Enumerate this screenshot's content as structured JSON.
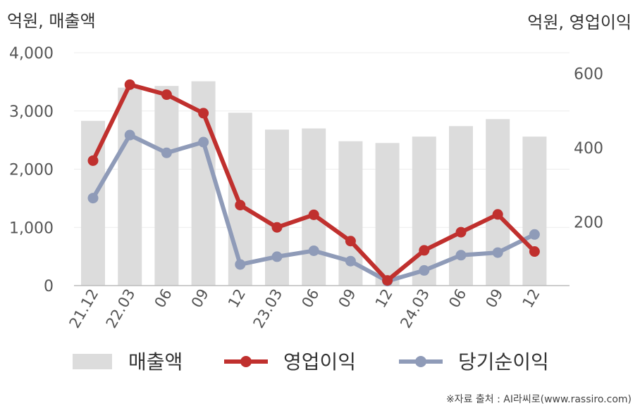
{
  "chart_data": {
    "type": "bar+line",
    "categories": [
      "21.12",
      "22.03",
      "06",
      "09",
      "12",
      "23.03",
      "06",
      "09",
      "12",
      "24.03",
      "06",
      "09",
      "12"
    ],
    "left_axis": {
      "title": "억원, 매출액",
      "ylim": [
        0,
        4000
      ],
      "ticks": [
        "0",
        "1,000",
        "2,000",
        "3,000",
        "4,000"
      ],
      "tick_values": [
        0,
        1000,
        2000,
        3000,
        4000
      ]
    },
    "right_axis": {
      "title": "억원, 영업이익",
      "ylim": [
        28,
        656
      ],
      "ticks": [
        "200",
        "400",
        "600"
      ],
      "tick_values": [
        200,
        400,
        600
      ]
    },
    "series": [
      {
        "name": "매출액",
        "type": "bar",
        "axis": "left",
        "color": "#dcdcdc",
        "values": [
          2830,
          3400,
          3430,
          3510,
          2970,
          2680,
          2700,
          2480,
          2450,
          2560,
          2740,
          2860,
          2560
        ]
      },
      {
        "name": "영업이익",
        "type": "line",
        "axis": "right",
        "color": "#c0302e",
        "values": [
          365,
          570,
          543,
          493,
          245,
          185,
          219,
          148,
          42,
          123,
          172,
          220,
          120
        ]
      },
      {
        "name": "당기순이익",
        "type": "line",
        "axis": "right",
        "color": "#8f9bb8",
        "values": [
          264,
          434,
          386,
          415,
          85,
          106,
          122,
          94,
          40,
          69,
          110,
          117,
          166
        ]
      }
    ],
    "grid": true,
    "legend": "bottom"
  },
  "source_text": "※자료 출처 : AI라씨로(www.rassiro.com)"
}
